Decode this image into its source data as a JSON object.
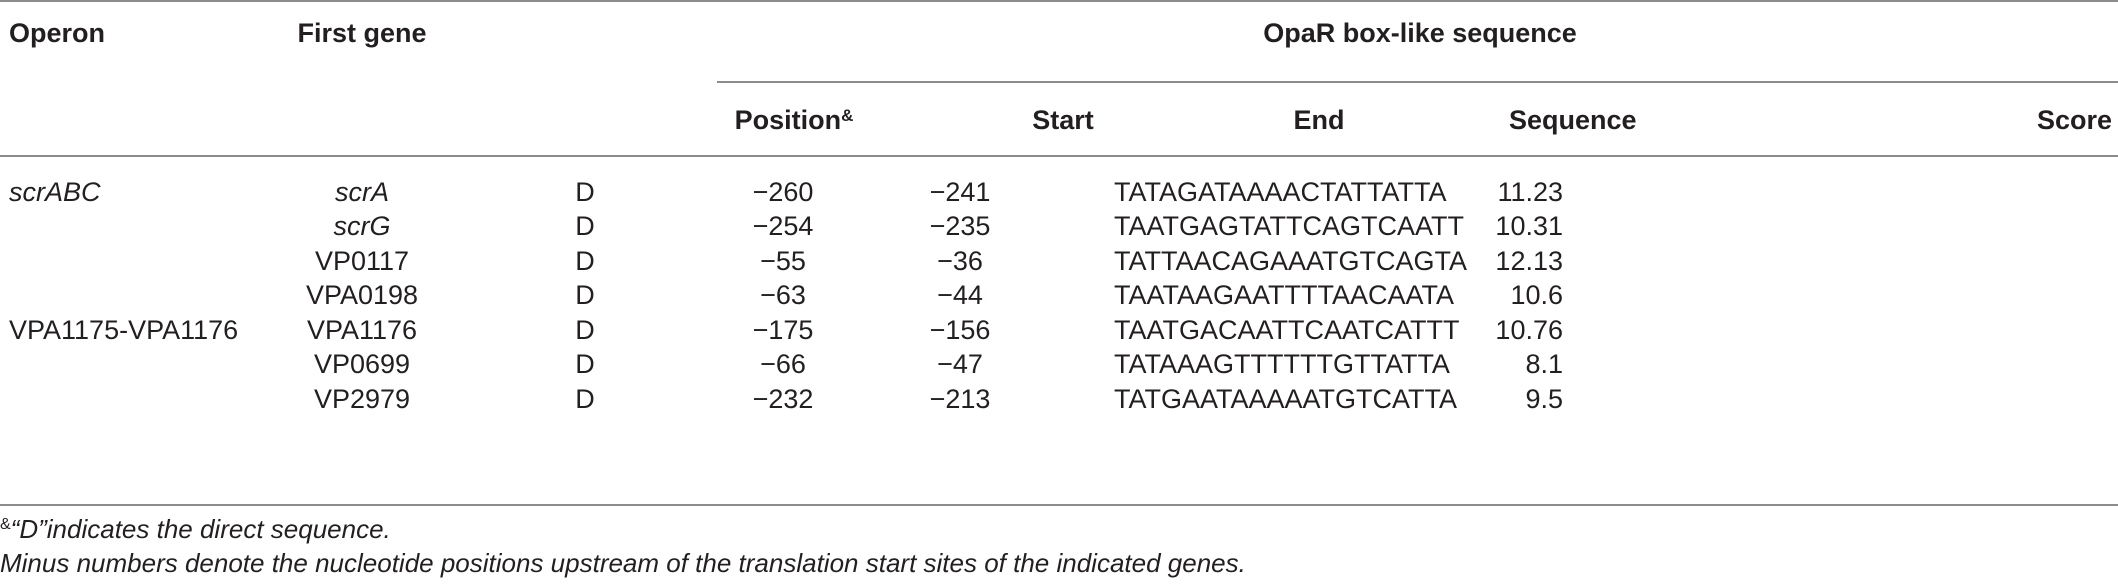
{
  "headers": {
    "operon": "Operon",
    "first_gene": "First gene",
    "group": "OpaR box-like sequence",
    "position": "Position",
    "position_sup": "&",
    "start": "Start",
    "end": "End",
    "sequence": "Sequence",
    "score": "Score"
  },
  "rows": [
    {
      "operon": "scrABC",
      "operon_italic": true,
      "gene": "scrA",
      "gene_italic": true,
      "position": "D",
      "start": "−260",
      "end": "−241",
      "sequence": "TATAGATAAAACTATTATTA",
      "score": "11.23"
    },
    {
      "operon": "",
      "operon_italic": false,
      "gene": "scrG",
      "gene_italic": true,
      "position": "D",
      "start": "−254",
      "end": "−235",
      "sequence": "TAATGAGTATTCAGTCAATT",
      "score": "10.31"
    },
    {
      "operon": "",
      "operon_italic": false,
      "gene": "VP0117",
      "gene_italic": false,
      "position": "D",
      "start": "−55",
      "end": "−36",
      "sequence": "TATTAACAGAAATGTCAGTA",
      "score": "12.13"
    },
    {
      "operon": "",
      "operon_italic": false,
      "gene": "VPA0198",
      "gene_italic": false,
      "position": "D",
      "start": "−63",
      "end": "−44",
      "sequence": "TAATAAGAATTTTAACAATA",
      "score": "10.6"
    },
    {
      "operon": "VPA1175-VPA1176",
      "operon_italic": false,
      "gene": "VPA1176",
      "gene_italic": false,
      "position": "D",
      "start": "−175",
      "end": "−156",
      "sequence": "TAATGACAATTCAATCATTT",
      "score": "10.76"
    },
    {
      "operon": "",
      "operon_italic": false,
      "gene": "VP0699",
      "gene_italic": false,
      "position": "D",
      "start": "−66",
      "end": "−47",
      "sequence": "TATAAAGTTTTTTGTTATTA",
      "score": "8.1"
    },
    {
      "operon": "",
      "operon_italic": false,
      "gene": "VP2979",
      "gene_italic": false,
      "position": "D",
      "start": "−232",
      "end": "−213",
      "sequence": "TATGAATAAAAATGTCATTA",
      "score": "9.5"
    }
  ],
  "footnotes": {
    "note1_sup": "&",
    "note1": "“D”indicates the direct sequence.",
    "note2": "Minus numbers denote the nucleotide positions upstream of the translation start sites of the indicated genes."
  }
}
